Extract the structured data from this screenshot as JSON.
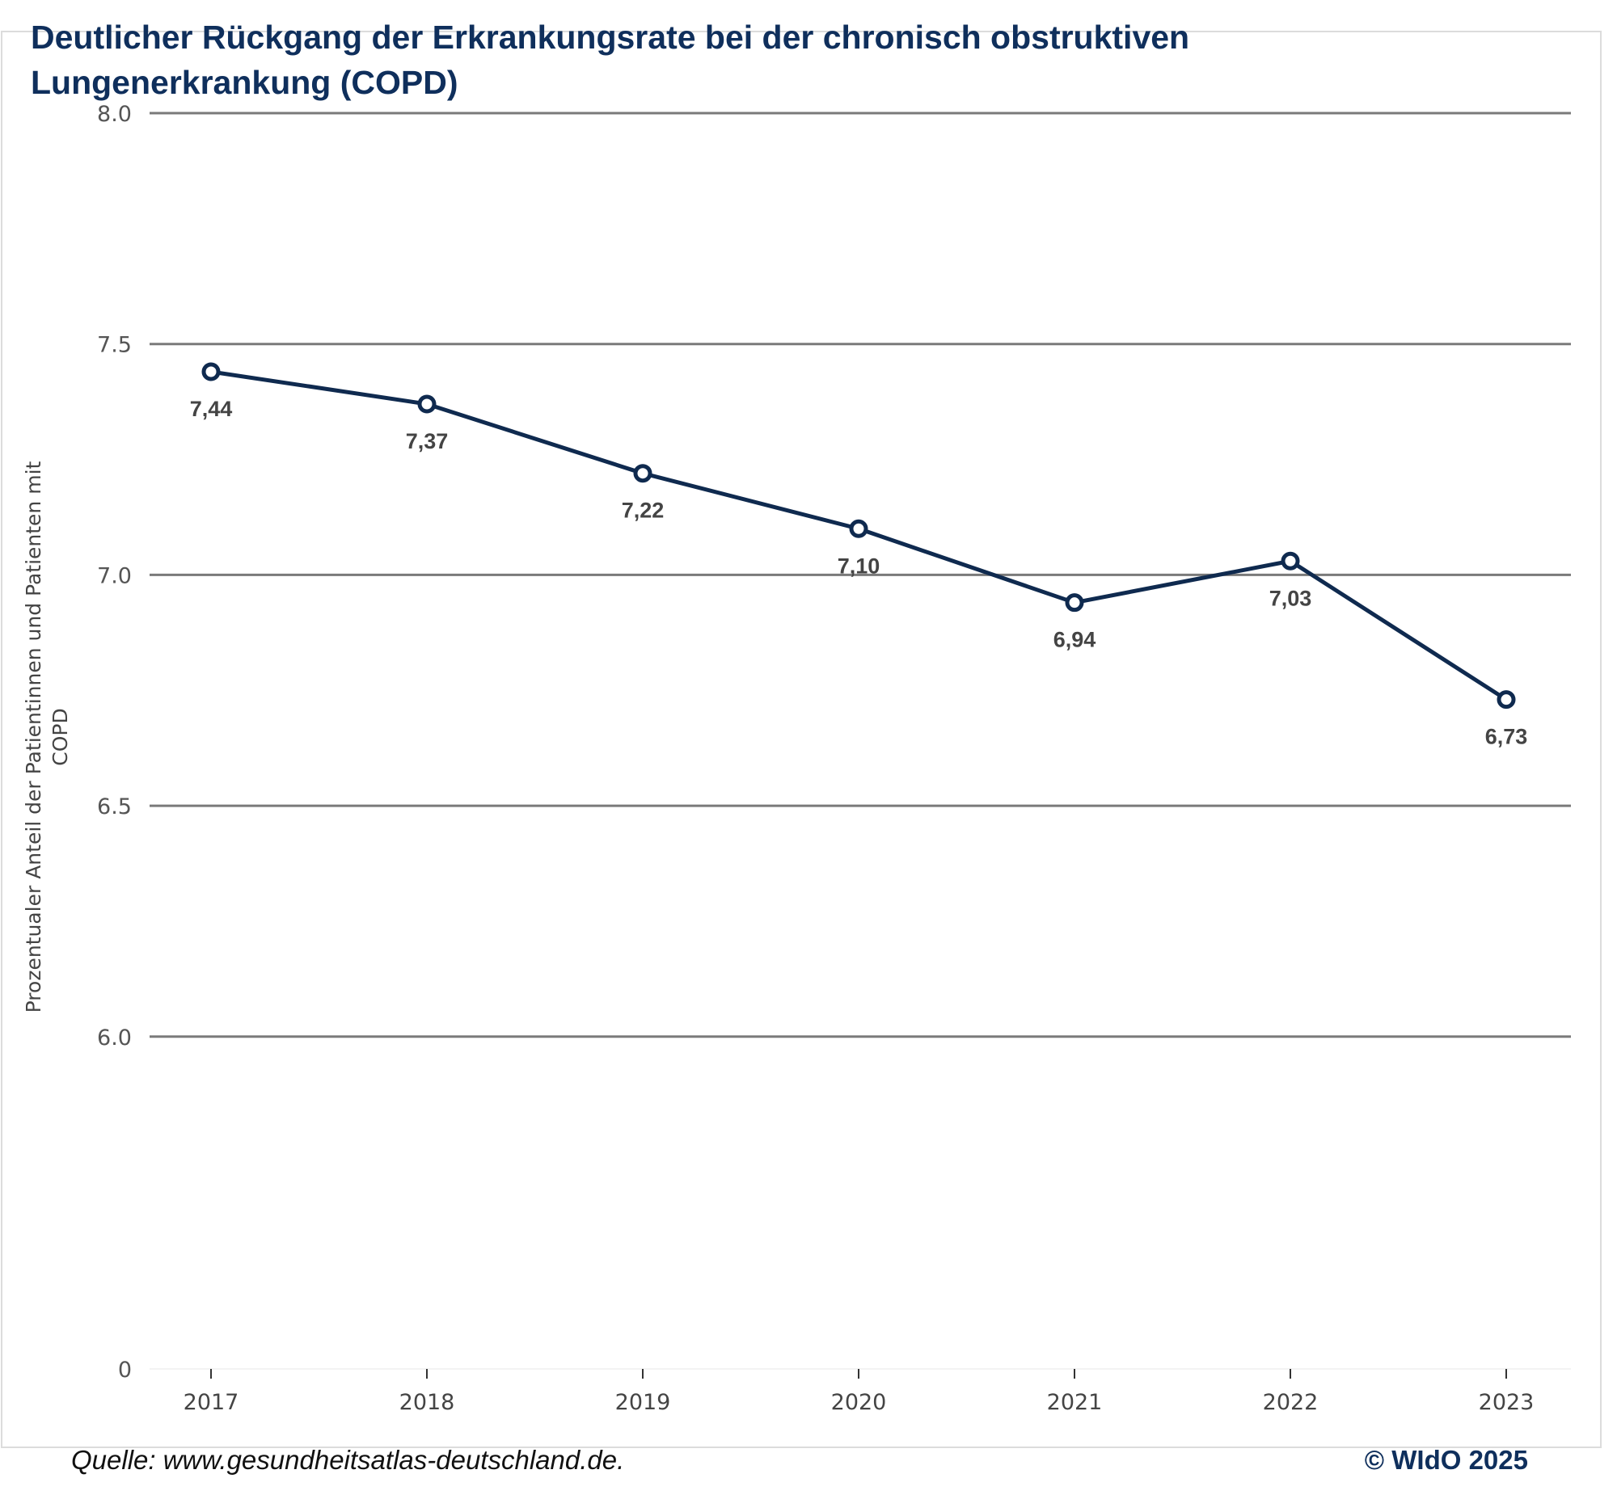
{
  "title": "Deutlicher Rückgang der Erkrankungsrate bei der chronisch obstruktiven Lungenerkrankung (COPD)",
  "footer": {
    "source": "Quelle: www.gesundheitsatlas-deutschland.de.",
    "copyright": "© WIdO 2025"
  },
  "chart_data": {
    "type": "line",
    "title": "Deutlicher Rückgang der Erkrankungsrate bei der chronisch obstruktiven Lungenerkrankung (COPD)",
    "xlabel": "",
    "ylabel": "Prozentualer Anteil der Patientinnen und Patienten mit COPD",
    "categories": [
      "2017",
      "2018",
      "2019",
      "2020",
      "2021",
      "2022",
      "2023"
    ],
    "values": [
      7.44,
      7.37,
      7.22,
      7.1,
      6.94,
      7.03,
      6.73
    ],
    "data_labels": [
      "7,44",
      "7,37",
      "7,22",
      "7,10",
      "6,94",
      "7,03",
      "6,73"
    ],
    "yticks": [
      "8.0",
      "7.5",
      "7.0",
      "6.5",
      "6.0",
      "0"
    ],
    "ytick_values": [
      8.0,
      7.5,
      7.0,
      6.5,
      6.0,
      0
    ],
    "ylim": [
      6.0,
      8.0
    ],
    "axis_break": "between 0 and 6.0",
    "grid": true,
    "legend": "none",
    "line_color": "#0f2a4f",
    "marker": "hollow circle"
  }
}
